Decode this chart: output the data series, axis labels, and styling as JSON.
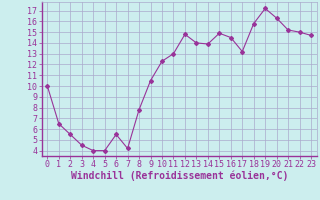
{
  "x": [
    0,
    1,
    2,
    3,
    4,
    5,
    6,
    7,
    8,
    9,
    10,
    11,
    12,
    13,
    14,
    15,
    16,
    17,
    18,
    19,
    20,
    21,
    22,
    23
  ],
  "y": [
    10,
    6.5,
    5.5,
    4.5,
    4.0,
    4.0,
    5.5,
    4.2,
    7.8,
    10.5,
    12.3,
    13.0,
    14.8,
    14.0,
    13.9,
    14.9,
    14.5,
    13.2,
    15.8,
    17.2,
    16.3,
    15.2,
    15.0,
    14.7
  ],
  "line_color": "#993399",
  "marker": "D",
  "marker_size": 2,
  "bg_color": "#cceeee",
  "grid_color": "#aaaacc",
  "xlabel": "Windchill (Refroidissement éolien,°C)",
  "ylabel_ticks": [
    4,
    5,
    6,
    7,
    8,
    9,
    10,
    11,
    12,
    13,
    14,
    15,
    16,
    17
  ],
  "xlim": [
    -0.5,
    23.5
  ],
  "ylim": [
    3.5,
    17.8
  ],
  "xtick_labels": [
    "0",
    "1",
    "2",
    "3",
    "4",
    "5",
    "6",
    "7",
    "8",
    "9",
    "10",
    "11",
    "12",
    "13",
    "14",
    "15",
    "16",
    "17",
    "18",
    "19",
    "20",
    "21",
    "22",
    "23"
  ],
  "xlabel_color": "#993399",
  "tick_color": "#993399",
  "label_fontsize": 7,
  "tick_fontsize": 6,
  "spine_color": "#993399"
}
